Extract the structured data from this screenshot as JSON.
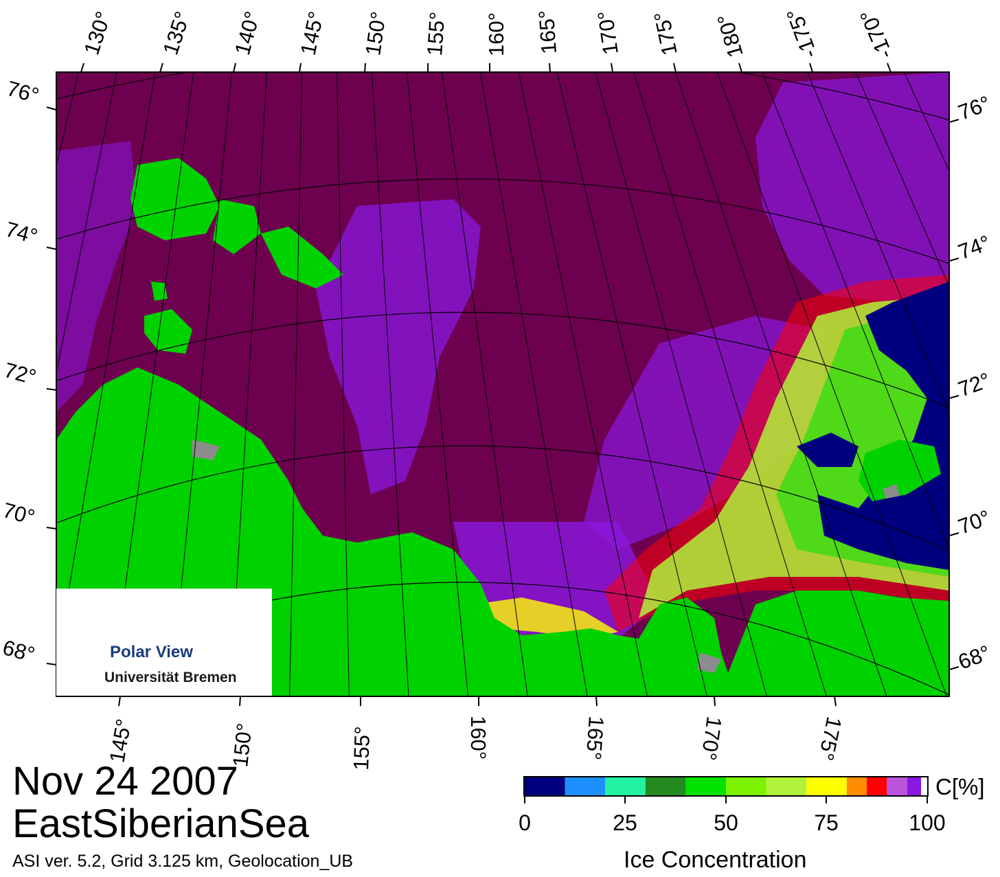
{
  "title": {
    "date": "Nov 24 2007",
    "region": "EastSiberianSea",
    "info": "ASI ver. 5.2,  Grid 3.125 km, Geolocation_UB"
  },
  "logo": {
    "line1": "Polar View",
    "line2": "Universität Bremen"
  },
  "colorbar": {
    "title": "Ice Concentration",
    "unit": "C[%]",
    "tick_labels": [
      "0",
      "25",
      "50",
      "75",
      "100"
    ],
    "colors": [
      "#00007f",
      "#1e8fff",
      "#22f2a2",
      "#238b22",
      "#00e100",
      "#7df200",
      "#b0f23a",
      "#ffff00",
      "#ff8c00",
      "#ff0000",
      "#bb55dd",
      "#8a18e0",
      "#ffffff"
    ]
  },
  "map": {
    "top_lon_labels": [
      "130°",
      "135°",
      "140°",
      "145°",
      "150°",
      "155°",
      "160°",
      "165°",
      "170°",
      "175°",
      "180°",
      "-175°",
      "-170°"
    ],
    "bottom_lon_labels": [
      "145°",
      "150°",
      "155°",
      "160°",
      "165°",
      "170°",
      "175°"
    ],
    "left_lat_labels": [
      "76°",
      "74°",
      "72°",
      "70°",
      "68°"
    ],
    "right_lat_labels": [
      "76°",
      "74°",
      "72°",
      "70°",
      "68°"
    ],
    "colors": {
      "high_ice": "#6e0050",
      "land": "#00d200",
      "open_water": "#00007f",
      "gray": "#8c8c8c"
    }
  }
}
